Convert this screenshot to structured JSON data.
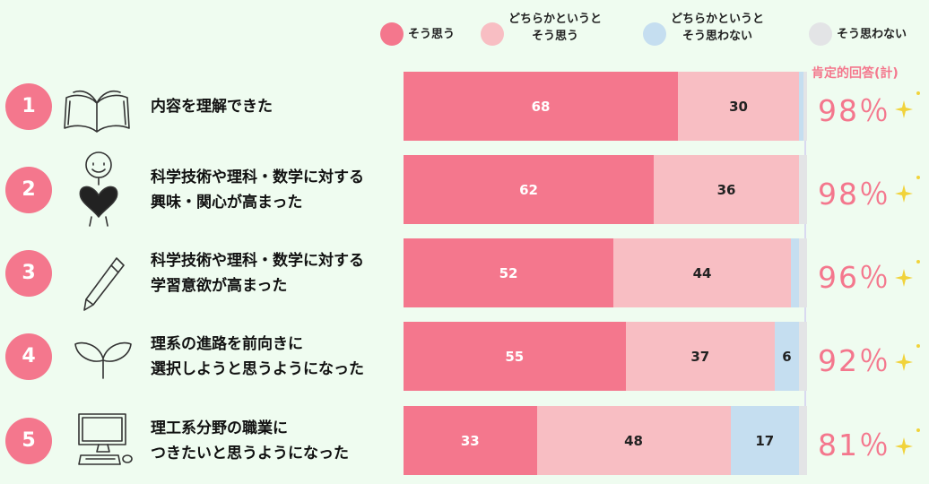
{
  "chart_data": {
    "type": "stacked-bar-horizontal",
    "categories": [
      "内容を理解できた",
      "科学技術や理科・数学に対する\n興味・関心が高まった",
      "科学技術や理科・数学に対する\n学習意欲が高まった",
      "理系の進路を前向きに\n選択しようと思うようになった",
      "理工系分野の職業に\nつきたいと思うようになった"
    ],
    "row_numbers": [
      "1",
      "2",
      "3",
      "4",
      "5"
    ],
    "series": [
      {
        "name": "そう思う",
        "color": "#f4778d",
        "values": [
          68,
          62,
          52,
          55,
          33
        ]
      },
      {
        "name": "どちらかというと\nそう思う",
        "color": "#f8bec3",
        "values": [
          30,
          36,
          44,
          37,
          48
        ]
      },
      {
        "name": "どちらかというと\nそう思わない",
        "color": "#c5def0",
        "values": [
          1,
          0,
          2,
          6,
          17
        ]
      },
      {
        "name": "そう思わない",
        "color": "#e3e4e6",
        "values": [
          1,
          2,
          2,
          2,
          2
        ]
      }
    ],
    "xlim": [
      0,
      100
    ],
    "positive_total": {
      "title": "肯定的回答(計)",
      "labels": [
        "98％",
        "98％",
        "96％",
        "92％",
        "81％"
      ]
    }
  }
}
